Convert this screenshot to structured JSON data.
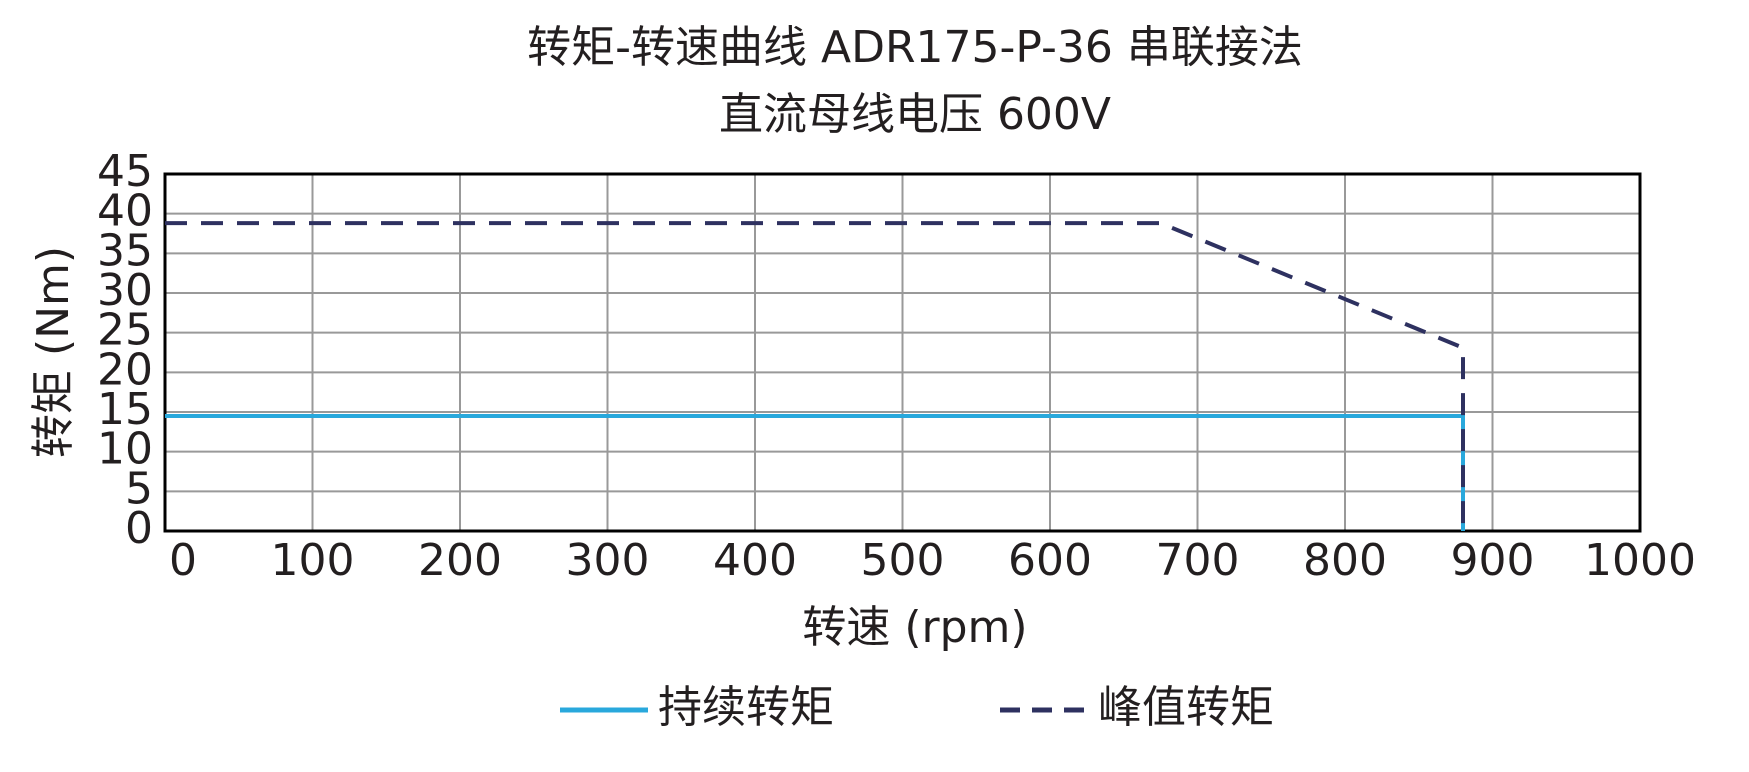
{
  "chart_data": {
    "type": "line",
    "title": "转矩-转速曲线 ADR175-P-36 串联接法",
    "subtitle": "直流母线电压 600V",
    "x_label": "转速 (rpm)",
    "y_label": "转矩 (Nm)",
    "xlim": [
      0,
      1000
    ],
    "xticks": [
      0,
      100,
      200,
      300,
      400,
      500,
      600,
      700,
      800,
      900,
      1000
    ],
    "ylim": [
      0,
      45
    ],
    "yticks": [
      0,
      5,
      10,
      15,
      20,
      25,
      30,
      35,
      40,
      45
    ],
    "grid": true,
    "legend": "bottom",
    "series": [
      {
        "name": "持续转矩",
        "color": "#29a8dc",
        "dashed": false,
        "x": [
          0,
          880,
          880
        ],
        "values": [
          14.5,
          14.5,
          0
        ]
      },
      {
        "name": "峰值转矩",
        "color": "#2e3160",
        "dashed": true,
        "x": [
          0,
          675,
          880,
          880
        ],
        "values": [
          38.8,
          38.8,
          23.1,
          0
        ]
      }
    ]
  }
}
